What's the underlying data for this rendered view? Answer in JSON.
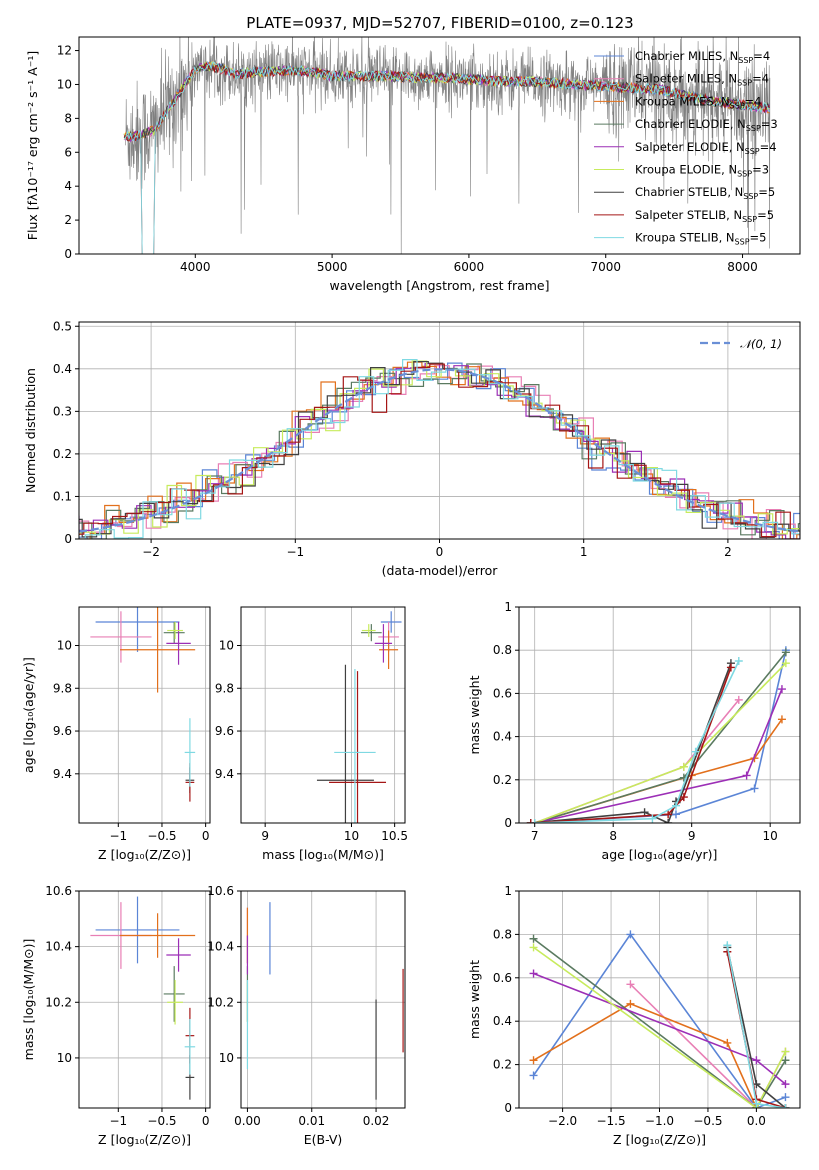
{
  "figure": {
    "title": "PLATE=0937, MJD=52707, FIBERID=0100, z=0.123"
  },
  "models": [
    {
      "name": "Chabrier MILES",
      "nssp": "4",
      "color": "#5b85d6"
    },
    {
      "name": "Salpeter MILES",
      "nssp": "4",
      "color": "#e87fb5"
    },
    {
      "name": "Kroupa MILES",
      "nssp": "4",
      "color": "#e2701c"
    },
    {
      "name": "Chabrier ELODIE",
      "nssp": "3",
      "color": "#5a7a60"
    },
    {
      "name": "Salpeter ELODIE",
      "nssp": "4",
      "color": "#9c2fb6"
    },
    {
      "name": "Kroupa ELODIE",
      "nssp": "3",
      "color": "#c7eb5c"
    },
    {
      "name": "Chabrier STELIB",
      "nssp": "5",
      "color": "#404040"
    },
    {
      "name": "Salpeter STELIB",
      "nssp": "5",
      "color": "#a51616"
    },
    {
      "name": "Kroupa STELIB",
      "nssp": "5",
      "color": "#7fd9e2"
    }
  ],
  "chart_data": [
    {
      "id": "spectrum",
      "type": "line",
      "title": "PLATE=0937, MJD=52707, FIBERID=0100, z=0.123",
      "xlabel": "wavelength [Angstrom, rest frame]",
      "ylabel": "Flux [fλ10⁻¹⁷ erg cm⁻² s⁻¹ A⁻¹]",
      "xlim": [
        3150,
        8420
      ],
      "ylim": [
        0,
        12.8
      ],
      "xticks": [
        4000,
        5000,
        6000,
        7000,
        8000
      ],
      "yticks": [
        0,
        2,
        4,
        6,
        8,
        10,
        12
      ],
      "legend": "right",
      "grid": false,
      "model_curve": {
        "x": [
          3480,
          3600,
          3700,
          3800,
          3900,
          4000,
          4100,
          4200,
          4300,
          4400,
          4600,
          4800,
          5000,
          5200,
          5400,
          5600,
          5800,
          6000,
          6200,
          6400,
          6600,
          6800,
          7000,
          7200,
          7400,
          7600,
          7800,
          8000,
          8200
        ],
        "y": [
          6.9,
          7.0,
          7.3,
          8.5,
          9.7,
          10.9,
          11.1,
          10.9,
          10.6,
          10.7,
          10.8,
          10.8,
          10.5,
          10.5,
          10.5,
          10.4,
          10.4,
          10.3,
          10.2,
          10.2,
          10.1,
          10.0,
          9.9,
          9.8,
          9.7,
          9.3,
          9.0,
          8.8,
          8.6
        ]
      }
    },
    {
      "id": "residual-histogram",
      "type": "line",
      "xlabel": "(data-model)/error",
      "ylabel": "Normed distribution",
      "xlim": [
        -2.5,
        2.5
      ],
      "ylim": [
        0,
        0.51
      ],
      "xticks": [
        -2,
        -1,
        0,
        1,
        2
      ],
      "yticks": [
        0.0,
        0.1,
        0.2,
        0.3,
        0.4,
        0.5
      ],
      "grid": true,
      "legend": "top-right",
      "reference_curve": {
        "name": "𝒩(0, 1)",
        "mean": 0,
        "sigma": 1
      },
      "histogram_bin_width": 0.1
    },
    {
      "id": "age-vs-metallicity",
      "type": "scatter",
      "xlabel": "Z [log₁₀(Z/Z⊙)]",
      "ylabel": "age  [log₁₀(age/yr)]",
      "xlim": [
        -1.45,
        0.05
      ],
      "ylim": [
        9.17,
        10.18
      ],
      "xticks": [
        -1.0,
        -0.5,
        0.0
      ],
      "yticks": [
        9.4,
        9.6,
        9.8,
        10.0
      ],
      "grid": true,
      "points": [
        {
          "model": 0,
          "x": -0.78,
          "y": 10.11,
          "xerr": 0.48,
          "yerr": 0.14
        },
        {
          "model": 1,
          "x": -0.97,
          "y": 10.04,
          "xerr": 0.35,
          "yerr": 0.12
        },
        {
          "model": 2,
          "x": -0.55,
          "y": 9.98,
          "xerr": 0.43,
          "yerr": 0.2
        },
        {
          "model": 3,
          "x": -0.36,
          "y": 10.06,
          "xerr": 0.12,
          "yerr": 0.05
        },
        {
          "model": 4,
          "x": -0.31,
          "y": 10.01,
          "xerr": 0.14,
          "yerr": 0.1
        },
        {
          "model": 5,
          "x": -0.35,
          "y": 10.07,
          "xerr": 0.09,
          "yerr": 0.04
        },
        {
          "model": 6,
          "x": -0.18,
          "y": 9.37,
          "xerr": 0.05,
          "yerr": 0.06
        },
        {
          "model": 7,
          "x": -0.18,
          "y": 9.36,
          "xerr": 0.05,
          "yerr": 0.09
        },
        {
          "model": 8,
          "x": -0.18,
          "y": 9.5,
          "xerr": 0.06,
          "yerr": 0.16
        }
      ]
    },
    {
      "id": "age-vs-mass",
      "type": "scatter",
      "xlabel": "mass [log₁₀(M/M⊙)]",
      "ylabel": "",
      "xlim": [
        8.72,
        10.62
      ],
      "ylim": [
        9.17,
        10.18
      ],
      "xticks": [
        9,
        10,
        10.5
      ],
      "yticks": [
        9.4,
        9.6,
        9.8,
        10.0
      ],
      "grid": true,
      "points": [
        {
          "model": 0,
          "x": 10.46,
          "y": 10.11,
          "xerr": 0.12,
          "yerr": 0.05
        },
        {
          "model": 1,
          "x": 10.43,
          "y": 10.04,
          "xerr": 0.12,
          "yerr": 0.07
        },
        {
          "model": 2,
          "x": 10.43,
          "y": 9.98,
          "xerr": 0.11,
          "yerr": 0.09
        },
        {
          "model": 3,
          "x": 10.23,
          "y": 10.06,
          "xerr": 0.12,
          "yerr": 0.04
        },
        {
          "model": 4,
          "x": 10.37,
          "y": 10.01,
          "xerr": 0.1,
          "yerr": 0.09
        },
        {
          "model": 5,
          "x": 10.2,
          "y": 10.07,
          "xerr": 0.08,
          "yerr": 0.03
        },
        {
          "model": 6,
          "x": 9.93,
          "y": 9.37,
          "xerr": 0.33,
          "yerr": 0.54
        },
        {
          "model": 7,
          "x": 10.07,
          "y": 9.36,
          "xerr": 0.33,
          "yerr": 0.52
        },
        {
          "model": 8,
          "x": 10.04,
          "y": 9.5,
          "xerr": 0.24,
          "yerr": 0.39
        }
      ]
    },
    {
      "id": "mass-weight-vs-age",
      "type": "line",
      "xlabel": "age  [log₁₀(age/yr)]",
      "ylabel": "mass weight",
      "xlim": [
        6.8,
        10.38
      ],
      "ylim": [
        0,
        1.0
      ],
      "xticks": [
        7,
        8,
        9,
        10
      ],
      "yticks": [
        0.0,
        0.2,
        0.4,
        0.6,
        0.8,
        1.0
      ],
      "grid": true,
      "series": [
        {
          "model": 0,
          "x": [
            7.0,
            8.8,
            9.8,
            10.2
          ],
          "y": [
            0.0,
            0.04,
            0.16,
            0.8
          ]
        },
        {
          "model": 1,
          "x": [
            7.0,
            8.9,
            9.6
          ],
          "y": [
            0.0,
            0.26,
            0.57
          ]
        },
        {
          "model": 2,
          "x": [
            7.0,
            9.0,
            9.8,
            10.15
          ],
          "y": [
            0.0,
            0.22,
            0.3,
            0.48
          ]
        },
        {
          "model": 3,
          "x": [
            7.0,
            8.9,
            10.2
          ],
          "y": [
            0.0,
            0.21,
            0.79
          ]
        },
        {
          "model": 4,
          "x": [
            7.0,
            9.7,
            10.15
          ],
          "y": [
            0.0,
            0.22,
            0.62
          ]
        },
        {
          "model": 5,
          "x": [
            7.0,
            8.9,
            10.2
          ],
          "y": [
            0.0,
            0.26,
            0.74
          ]
        },
        {
          "model": 6,
          "x": [
            6.95,
            8.4,
            8.7,
            8.8,
            8.85,
            9.5
          ],
          "y": [
            0.0,
            0.05,
            0.0,
            0.1,
            0.11,
            0.74
          ]
        },
        {
          "model": 7,
          "x": [
            6.95,
            8.7,
            8.9,
            9.5
          ],
          "y": [
            0.0,
            0.04,
            0.12,
            0.72
          ]
        },
        {
          "model": 8,
          "x": [
            7.0,
            8.5,
            8.8,
            9.05,
            9.6
          ],
          "y": [
            0.0,
            0.02,
            0.08,
            0.33,
            0.75
          ]
        }
      ]
    },
    {
      "id": "mass-vs-metallicity",
      "type": "scatter",
      "xlabel": "Z [log₁₀(Z/Z⊙)]",
      "ylabel": "mass [log₁₀(M/M⊙)]",
      "xlim": [
        -1.45,
        0.05
      ],
      "ylim": [
        9.82,
        10.6
      ],
      "xticks": [
        -1.0,
        -0.5,
        0.0
      ],
      "yticks": [
        10.0,
        10.2,
        10.4,
        10.6
      ],
      "grid": true,
      "points": [
        {
          "model": 0,
          "x": -0.78,
          "y": 10.46,
          "xerr": 0.48,
          "yerr": 0.12
        },
        {
          "model": 1,
          "x": -0.97,
          "y": 10.44,
          "xerr": 0.35,
          "yerr": 0.12
        },
        {
          "model": 2,
          "x": -0.55,
          "y": 10.44,
          "xerr": 0.43,
          "yerr": 0.08
        },
        {
          "model": 3,
          "x": -0.36,
          "y": 10.23,
          "xerr": 0.12,
          "yerr": 0.1
        },
        {
          "model": 4,
          "x": -0.31,
          "y": 10.37,
          "xerr": 0.14,
          "yerr": 0.06
        },
        {
          "model": 5,
          "x": -0.35,
          "y": 10.2,
          "xerr": 0.09,
          "yerr": 0.08
        },
        {
          "model": 6,
          "x": -0.18,
          "y": 9.93,
          "xerr": 0.05,
          "yerr": 0.08
        },
        {
          "model": 7,
          "x": -0.18,
          "y": 10.08,
          "xerr": 0.05,
          "yerr": 0.1
        },
        {
          "model": 8,
          "x": -0.18,
          "y": 10.04,
          "xerr": 0.06,
          "yerr": 0.1
        }
      ]
    },
    {
      "id": "mass-vs-extinction",
      "type": "scatter",
      "xlabel": "E(B-V)",
      "ylabel": "",
      "xlim": [
        -0.001,
        0.0245
      ],
      "ylim": [
        9.82,
        10.6
      ],
      "xticks": [
        0.0,
        0.01,
        0.02
      ],
      "yticks": [
        10.0,
        10.2,
        10.4,
        10.6
      ],
      "grid": true,
      "points": [
        {
          "model": 0,
          "x": 0.0035,
          "y": 10.43,
          "xerr": 0,
          "yerr": 0.13
        },
        {
          "model": 1,
          "x": 0.0,
          "y": 10.44,
          "xerr": 0,
          "yerr": 0.1
        },
        {
          "model": 2,
          "x": 0.0,
          "y": 10.44,
          "xerr": 0,
          "yerr": 0.1
        },
        {
          "model": 3,
          "x": 0.0,
          "y": 10.23,
          "xerr": 0,
          "yerr": 0.1
        },
        {
          "model": 4,
          "x": 0.0,
          "y": 10.37,
          "xerr": 0,
          "yerr": 0.07
        },
        {
          "model": 5,
          "x": 0.0,
          "y": 10.2,
          "xerr": 0,
          "yerr": 0.07
        },
        {
          "model": 6,
          "x": 0.02,
          "y": 10.03,
          "xerr": 0,
          "yerr": 0.18
        },
        {
          "model": 7,
          "x": 0.0242,
          "y": 10.17,
          "xerr": 0,
          "yerr": 0.15
        },
        {
          "model": 8,
          "x": 0.0,
          "y": 10.12,
          "xerr": 0,
          "yerr": 0.16
        }
      ]
    },
    {
      "id": "mass-weight-vs-metallicity",
      "type": "line",
      "xlabel": "Z [log₁₀(Z/Z⊙)]",
      "ylabel": "mass weight",
      "xlim": [
        -2.45,
        0.45
      ],
      "ylim": [
        0,
        1.0
      ],
      "xticks": [
        -2.0,
        -1.5,
        -1.0,
        -0.5,
        0.0
      ],
      "yticks": [
        0.0,
        0.2,
        0.4,
        0.6,
        0.8,
        1.0
      ],
      "grid": true,
      "series": [
        {
          "model": 0,
          "x": [
            -2.3,
            -1.3,
            0.0,
            0.3
          ],
          "y": [
            0.15,
            0.8,
            0.0,
            0.05
          ]
        },
        {
          "model": 1,
          "x": [
            -1.3,
            0.0,
            0.3
          ],
          "y": [
            0.57,
            0.0,
            0.26
          ]
        },
        {
          "model": 2,
          "x": [
            -2.3,
            -1.3,
            -0.3,
            0.0
          ],
          "y": [
            0.22,
            0.48,
            0.3,
            0.0
          ]
        },
        {
          "model": 3,
          "x": [
            -2.3,
            0.0,
            0.3
          ],
          "y": [
            0.78,
            0.0,
            0.22
          ]
        },
        {
          "model": 4,
          "x": [
            -2.3,
            0.0,
            0.3
          ],
          "y": [
            0.62,
            0.22,
            0.11
          ]
        },
        {
          "model": 5,
          "x": [
            -2.3,
            0.0,
            0.3
          ],
          "y": [
            0.74,
            0.0,
            0.26
          ]
        },
        {
          "model": 6,
          "x": [
            -0.3,
            0.0,
            0.3
          ],
          "y": [
            0.74,
            0.11,
            0.0
          ]
        },
        {
          "model": 7,
          "x": [
            -0.3,
            0.0,
            0.3
          ],
          "y": [
            0.72,
            0.04,
            0.0
          ]
        },
        {
          "model": 8,
          "x": [
            -0.3,
            0.0,
            0.3
          ],
          "y": [
            0.75,
            0.02,
            0.0
          ]
        }
      ]
    }
  ]
}
